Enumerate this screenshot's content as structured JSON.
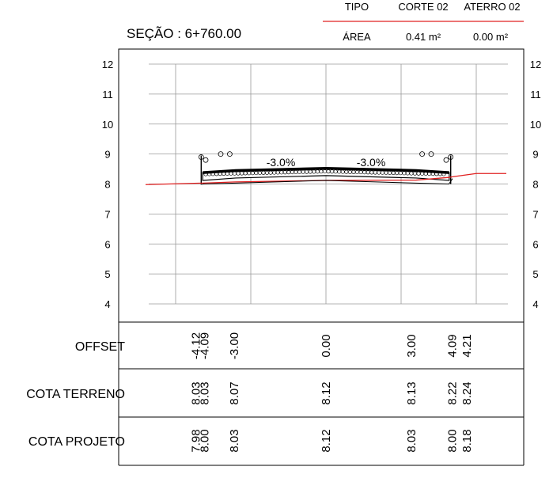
{
  "header": {
    "tipo_label": "TIPO",
    "corte_label": "CORTE 02",
    "aterro_label": "ATERRO 02",
    "area_label": "ÁREA",
    "corte_area": "0.41 m²",
    "aterro_area": "0.00 m²",
    "section_title": "SEÇÃO : 6+760.00"
  },
  "colors": {
    "terrain": "#e02020",
    "grid": "#9a9a9a",
    "frame": "#000000"
  },
  "chart_data": {
    "type": "line",
    "y_ticks": [
      "12",
      "11",
      "10",
      "9",
      "8",
      "7",
      "6",
      "5",
      "4"
    ],
    "ylim": [
      4,
      12
    ],
    "xlim": [
      -6.0,
      6.0
    ],
    "grid_x": [
      -5,
      -2.5,
      0,
      2.5,
      5
    ],
    "slope_labels": [
      {
        "text": "-3.0%",
        "x": -1.5,
        "y": 8.6
      },
      {
        "text": "-3.0%",
        "x": 1.5,
        "y": 8.6
      }
    ],
    "series": [
      {
        "key": "terreno",
        "x": [
          -6.0,
          -4.12,
          -4.09,
          -3.0,
          0.0,
          3.0,
          4.09,
          4.21,
          5.0,
          6.0
        ],
        "y": [
          7.98,
          8.03,
          8.03,
          8.07,
          8.12,
          8.13,
          8.22,
          8.24,
          8.35,
          8.35
        ]
      },
      {
        "key": "projeto",
        "x": [
          -4.12,
          -4.09,
          -3.0,
          0.0,
          3.0,
          4.09,
          4.21
        ],
        "y": [
          7.98,
          8.0,
          8.03,
          8.12,
          8.03,
          8.0,
          8.18
        ]
      }
    ]
  },
  "table": {
    "rows": [
      {
        "label": "OFFSET",
        "cells": [
          {
            "x": -4.12,
            "text": "-4.12"
          },
          {
            "x": -4.09,
            "text": "-4.09"
          },
          {
            "x": -3.0,
            "text": "-3.00"
          },
          {
            "x": 0.0,
            "text": "0.00"
          },
          {
            "x": 3.0,
            "text": "3.00"
          },
          {
            "x": 4.09,
            "text": "4.09"
          },
          {
            "x": 4.21,
            "text": "4.21"
          }
        ]
      },
      {
        "label": "COTA TERRENO",
        "cells": [
          {
            "x": -4.12,
            "text": "8.03"
          },
          {
            "x": -4.09,
            "text": "8.03"
          },
          {
            "x": -3.0,
            "text": "8.07"
          },
          {
            "x": 0.0,
            "text": "8.12"
          },
          {
            "x": 3.0,
            "text": "8.13"
          },
          {
            "x": 4.09,
            "text": "8.22"
          },
          {
            "x": 4.21,
            "text": "8.24"
          }
        ]
      },
      {
        "label": "COTA PROJETO",
        "cells": [
          {
            "x": -4.12,
            "text": "7.98"
          },
          {
            "x": -4.09,
            "text": "8.00"
          },
          {
            "x": -3.0,
            "text": "8.03"
          },
          {
            "x": 0.0,
            "text": "8.12"
          },
          {
            "x": 3.0,
            "text": "8.03"
          },
          {
            "x": 4.09,
            "text": "8.00"
          },
          {
            "x": 4.21,
            "text": "8.18"
          }
        ]
      }
    ]
  }
}
